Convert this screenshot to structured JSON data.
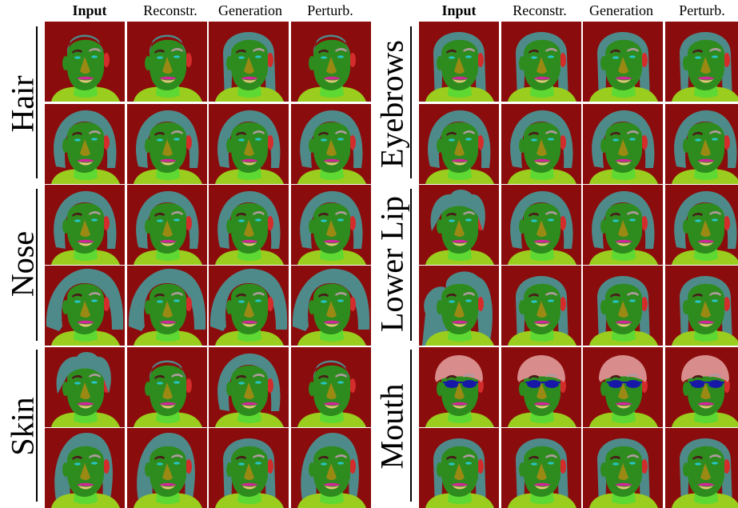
{
  "figure": {
    "column_headers": [
      "Input",
      "Reconstr.",
      "Generation",
      "Perturb."
    ],
    "panels": [
      {
        "groups": [
          {
            "label": "Hair",
            "rows": [
              [
                "short",
                "short",
                "long",
                "short"
              ],
              [
                "bob",
                "bob",
                "bob",
                "bob"
              ]
            ]
          },
          {
            "label": "Nose",
            "rows": [
              [
                "bob",
                "bob",
                "bob",
                "bob"
              ],
              [
                "wide",
                "wide",
                "wide",
                "wide"
              ]
            ]
          },
          {
            "label": "Skin",
            "rows": [
              [
                "curly",
                "short",
                "bob",
                "short"
              ],
              [
                "side",
                "side",
                "long",
                "side"
              ]
            ]
          }
        ]
      },
      {
        "groups": [
          {
            "label": "Eyebrows",
            "rows": [
              [
                "long",
                "long",
                "long",
                "long"
              ],
              [
                "bob",
                "bob",
                "bob",
                "bob"
              ]
            ]
          },
          {
            "label": "Lower Lip",
            "rows": [
              [
                "curly",
                "bob",
                "bob",
                "bob"
              ],
              [
                "wavy",
                "long",
                "long",
                "long"
              ]
            ]
          },
          {
            "label": "Mouth",
            "rows": [
              [
                "hat",
                "hat",
                "hat",
                "hat"
              ],
              [
                "long",
                "long",
                "long",
                "long"
              ]
            ]
          }
        ]
      }
    ],
    "colors": {
      "background": "#8b0c0c",
      "hair": "#4f8a8b",
      "face": "#2e8b1e",
      "neck": "#5ed832",
      "cloth": "#9acd1e",
      "ear": "#d42b2b",
      "nose": "#9a8a14",
      "brow_dark": "#4a1a1a",
      "brow_light": "#b09aa0",
      "eye": "#27c4c4",
      "lip_upper": "#d4249a",
      "mouth": "#e0c878",
      "hat": "#d88c8c",
      "glasses": "#1818a8"
    }
  }
}
